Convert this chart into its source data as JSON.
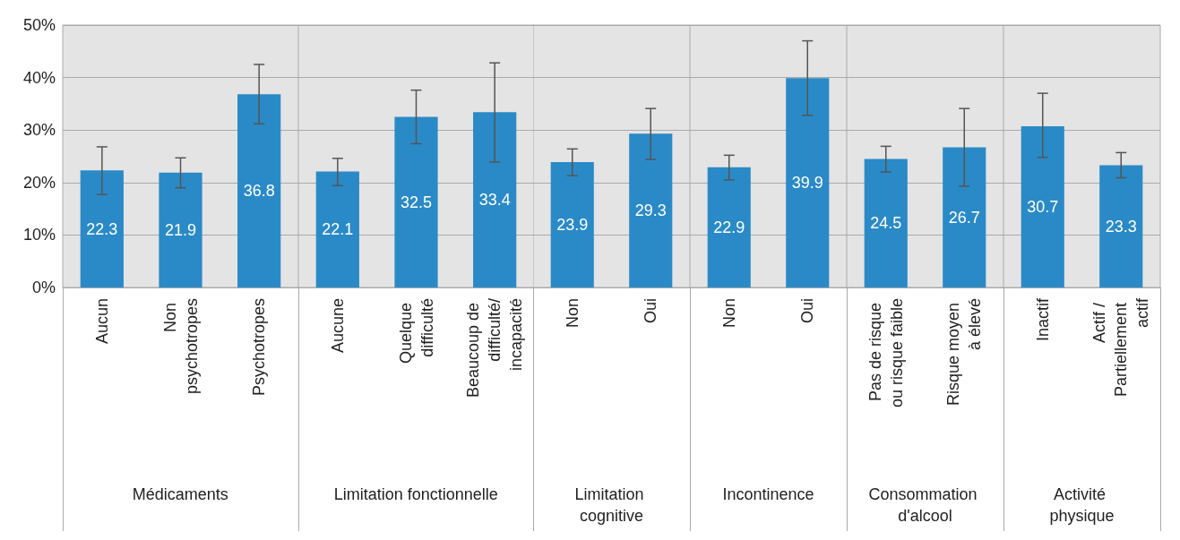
{
  "chart_data": [
    {
      "type": "bar",
      "xlabel": "Médicaments",
      "categories": [
        "Aucun",
        "Non psychotropes",
        "Psychotropes"
      ],
      "values": [
        22.3,
        21.9,
        36.8
      ],
      "errors": [
        [
          17.7,
          26.8
        ],
        [
          19.0,
          24.7
        ],
        [
          31.2,
          42.5
        ]
      ],
      "color": "#2a8ac7",
      "data_labels": true,
      "ylim": [
        0,
        50
      ],
      "yticks": [
        {
          "value": 0,
          "label": "0%"
        },
        {
          "value": 10,
          "label": "10%"
        },
        {
          "value": 20,
          "label": "20%"
        },
        {
          "value": 30,
          "label": "30%"
        },
        {
          "value": 40,
          "label": "40%"
        },
        {
          "value": 50,
          "label": "50%"
        }
      ],
      "grid": "y"
    },
    {
      "type": "bar",
      "xlabel": "Limitation fonctionnelle",
      "categories": [
        "Aucune",
        "Quelque difficulté",
        "Beaucoup de difficulté/incapacité"
      ],
      "values": [
        22.1,
        32.5,
        33.4
      ],
      "errors": [
        [
          19.4,
          24.6
        ],
        [
          27.4,
          37.6
        ],
        [
          23.9,
          42.8
        ]
      ],
      "color": "#2a8ac7",
      "data_labels": true,
      "ylim": [
        0,
        50
      ],
      "yticks": [
        0,
        10,
        20,
        30,
        40,
        50
      ],
      "grid": "y",
      "tick_labels": "x"
    },
    {
      "type": "bar",
      "xlabel": "Limitation cognitive",
      "categories": [
        "Non",
        "Oui"
      ],
      "values": [
        23.9,
        29.3
      ],
      "errors": [
        [
          21.3,
          26.4
        ],
        [
          24.4,
          34.1
        ]
      ],
      "color": "#2a8ac7",
      "data_labels": true,
      "ylim": [
        0,
        50
      ],
      "yticks": [
        0,
        10,
        20,
        30,
        40,
        50
      ],
      "grid": "y",
      "tick_labels": "x"
    },
    {
      "type": "bar",
      "xlabel": "Incontinence",
      "categories": [
        "Non",
        "Oui"
      ],
      "values": [
        22.9,
        39.9
      ],
      "errors": [
        [
          20.5,
          25.2
        ],
        [
          32.8,
          47.0
        ]
      ],
      "color": "#2a8ac7",
      "data_labels": true,
      "ylim": [
        0,
        50
      ],
      "yticks": [
        0,
        10,
        20,
        30,
        40,
        50
      ],
      "grid": "y",
      "tick_labels": "x"
    },
    {
      "type": "bar",
      "xlabel": "Consommation d'alcool",
      "categories": [
        "Pas de risque ou risque faible",
        "Risque moyen à élevé"
      ],
      "values": [
        24.5,
        26.7
      ],
      "errors": [
        [
          22.0,
          26.9
        ],
        [
          19.3,
          34.1
        ]
      ],
      "color": "#2a8ac7",
      "data_labels": true,
      "ylim": [
        0,
        50
      ],
      "yticks": [
        0,
        10,
        20,
        30,
        40,
        50
      ],
      "grid": "y",
      "tick_labels": "x"
    },
    {
      "type": "bar",
      "xlabel": "Activité physique",
      "categories": [
        "Inactif",
        "Actif / Partiellement actif"
      ],
      "values": [
        30.7,
        23.3
      ],
      "errors": [
        [
          24.8,
          37.0
        ],
        [
          20.9,
          25.7
        ]
      ],
      "color": "#2a8ac7",
      "data_labels": true,
      "ylim": [
        0,
        50
      ],
      "yticks": [
        0,
        10,
        20,
        30,
        40,
        50
      ],
      "grid": "y",
      "tick_labels": "x"
    }
  ]
}
